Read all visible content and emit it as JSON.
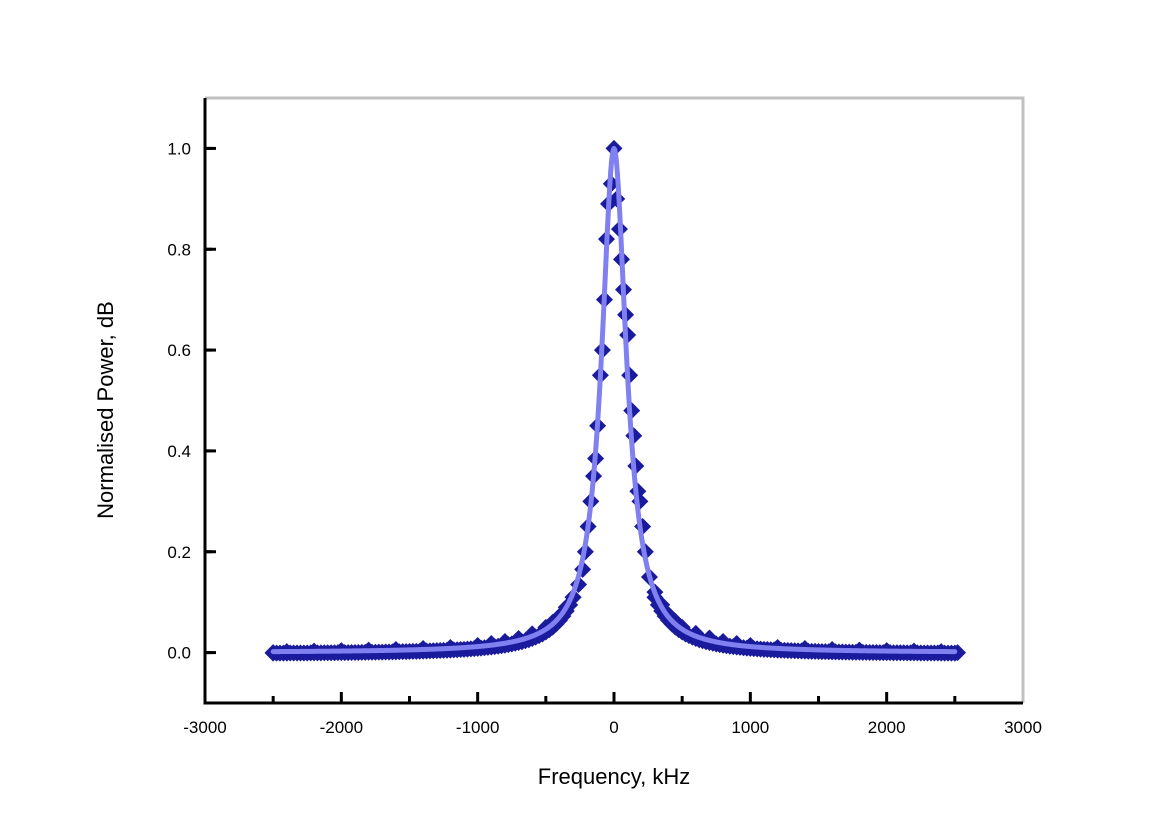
{
  "chart_data": {
    "type": "scatter",
    "title": "",
    "xlabel": "Frequency, kHz",
    "ylabel": "Normalised Power, dB",
    "xlim": [
      -3000,
      3000
    ],
    "ylim": [
      -0.1,
      1.1
    ],
    "x_ticks": [
      -3000,
      -2000,
      -1000,
      0,
      1000,
      2000,
      3000
    ],
    "x_tick_labels": [
      "-3000",
      "-2000",
      "-1000",
      "0",
      "1000",
      "2000",
      "3000"
    ],
    "y_ticks": [
      0.0,
      0.2,
      0.4,
      0.6,
      0.8,
      1.0
    ],
    "y_tick_labels": [
      "0.0",
      "0.2",
      "0.4",
      "0.6",
      "0.8",
      "1.0"
    ],
    "grid": false,
    "legend": "none",
    "colors": {
      "data": "#1a1a9c",
      "fit": "#8080f0",
      "frame": "#c0c0c0",
      "axis": "#000000"
    },
    "series": [
      {
        "kind": "scatter",
        "marker": "diamond",
        "points": [
          [
            -2500,
            0.0
          ],
          [
            -2400,
            0.002
          ],
          [
            -2200,
            0.003
          ],
          [
            -2000,
            0.004
          ],
          [
            -1800,
            0.005
          ],
          [
            -1600,
            0.006
          ],
          [
            -1400,
            0.008
          ],
          [
            -1200,
            0.01
          ],
          [
            -1000,
            0.014
          ],
          [
            -900,
            0.018
          ],
          [
            -800,
            0.022
          ],
          [
            -700,
            0.028
          ],
          [
            -600,
            0.037
          ],
          [
            -500,
            0.05
          ],
          [
            -450,
            0.06
          ],
          [
            -400,
            0.072
          ],
          [
            -350,
            0.09
          ],
          [
            -300,
            0.11
          ],
          [
            -260,
            0.135
          ],
          [
            -230,
            0.165
          ],
          [
            -210,
            0.2
          ],
          [
            -190,
            0.25
          ],
          [
            -170,
            0.3
          ],
          [
            -150,
            0.35
          ],
          [
            -135,
            0.385
          ],
          [
            -120,
            0.45
          ],
          [
            -100,
            0.55
          ],
          [
            -85,
            0.6
          ],
          [
            -70,
            0.7
          ],
          [
            -55,
            0.82
          ],
          [
            -40,
            0.89
          ],
          [
            -20,
            0.93
          ],
          [
            0,
            1.0
          ],
          [
            20,
            0.9
          ],
          [
            40,
            0.84
          ],
          [
            55,
            0.78
          ],
          [
            70,
            0.72
          ],
          [
            85,
            0.67
          ],
          [
            100,
            0.63
          ],
          [
            115,
            0.55
          ],
          [
            130,
            0.48
          ],
          [
            145,
            0.43
          ],
          [
            160,
            0.37
          ],
          [
            175,
            0.32
          ],
          [
            190,
            0.3
          ],
          [
            210,
            0.25
          ],
          [
            230,
            0.2
          ],
          [
            260,
            0.15
          ],
          [
            300,
            0.12
          ],
          [
            350,
            0.095
          ],
          [
            400,
            0.075
          ],
          [
            450,
            0.062
          ],
          [
            500,
            0.05
          ],
          [
            600,
            0.038
          ],
          [
            700,
            0.029
          ],
          [
            800,
            0.022
          ],
          [
            900,
            0.018
          ],
          [
            1000,
            0.014
          ],
          [
            1200,
            0.01
          ],
          [
            1400,
            0.008
          ],
          [
            1600,
            0.006
          ],
          [
            1800,
            0.005
          ],
          [
            2000,
            0.004
          ],
          [
            2200,
            0.003
          ],
          [
            2400,
            0.002
          ],
          [
            2520,
            0.0
          ]
        ]
      },
      {
        "kind": "line",
        "function": "lorentzian",
        "center": 0,
        "half_width": 110,
        "amplitude": 1.0,
        "x_range": [
          -2500,
          2500
        ]
      }
    ]
  }
}
